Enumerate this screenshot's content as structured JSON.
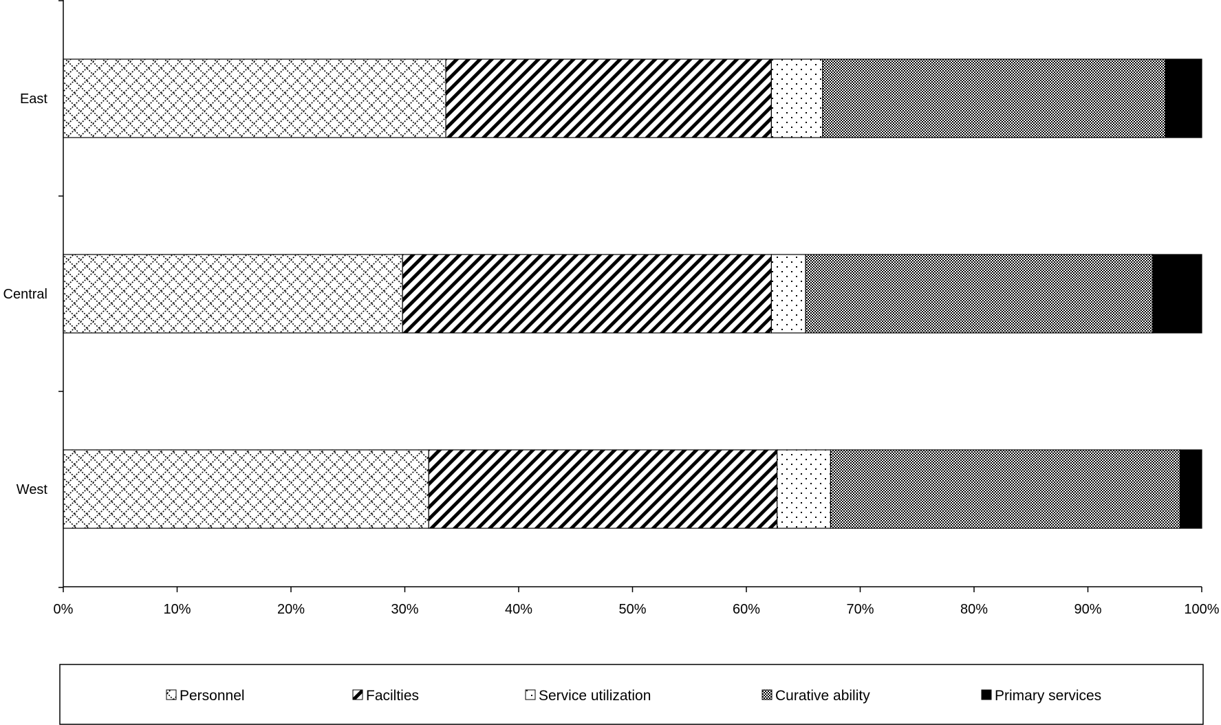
{
  "chart_data": {
    "type": "bar",
    "orientation": "horizontal",
    "stacked": "percent",
    "categories": [
      "East",
      "Central",
      "West"
    ],
    "series": [
      {
        "name": "Personnel",
        "values": [
          33.6,
          29.8,
          32.1
        ],
        "pattern": "crosshatch-diamond"
      },
      {
        "name": "Facilties",
        "values": [
          28.6,
          32.4,
          30.6
        ],
        "pattern": "diagonal-stripes"
      },
      {
        "name": "Service utilization",
        "values": [
          4.5,
          3.0,
          4.7
        ],
        "pattern": "dots"
      },
      {
        "name": "Curative ability",
        "values": [
          30.1,
          30.5,
          30.7
        ],
        "pattern": "checker"
      },
      {
        "name": "Primary services",
        "values": [
          3.2,
          4.3,
          1.9
        ],
        "pattern": "solid"
      }
    ],
    "xlim": [
      0,
      100
    ],
    "x_ticks": [
      "0%",
      "10%",
      "20%",
      "30%",
      "40%",
      "50%",
      "60%",
      "70%",
      "80%",
      "90%",
      "100%"
    ],
    "title": "",
    "xlabel": "",
    "ylabel": "",
    "grid": false,
    "legend": "bottom",
    "colors": {
      "ink": "#000000",
      "background": "#ffffff"
    }
  }
}
